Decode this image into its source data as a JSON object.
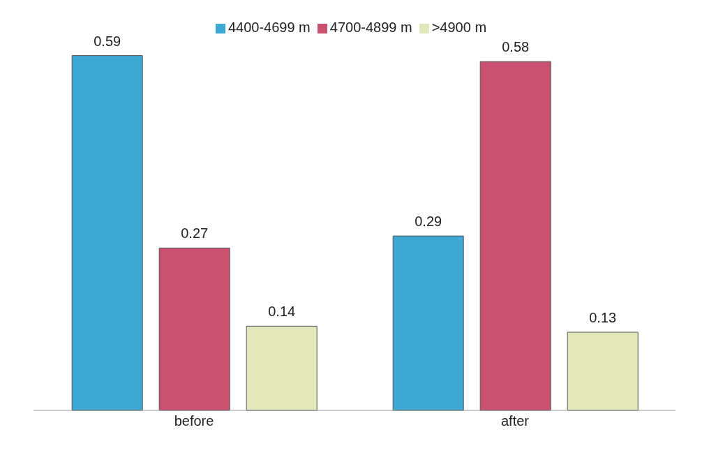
{
  "chart_data": {
    "type": "bar",
    "categories": [
      "before",
      "after"
    ],
    "series": [
      {
        "name": "4400-4699 m",
        "color": "#3ea8d4",
        "values": [
          0.59,
          0.29
        ]
      },
      {
        "name": "4700-4899 m",
        "color": "#c9506f",
        "values": [
          0.27,
          0.58
        ]
      },
      {
        "name": ">4900 m",
        "color": "#e2e8bc",
        "values": [
          0.14,
          0.13
        ]
      }
    ],
    "data_labels": true,
    "legend": "top",
    "grid": false
  }
}
